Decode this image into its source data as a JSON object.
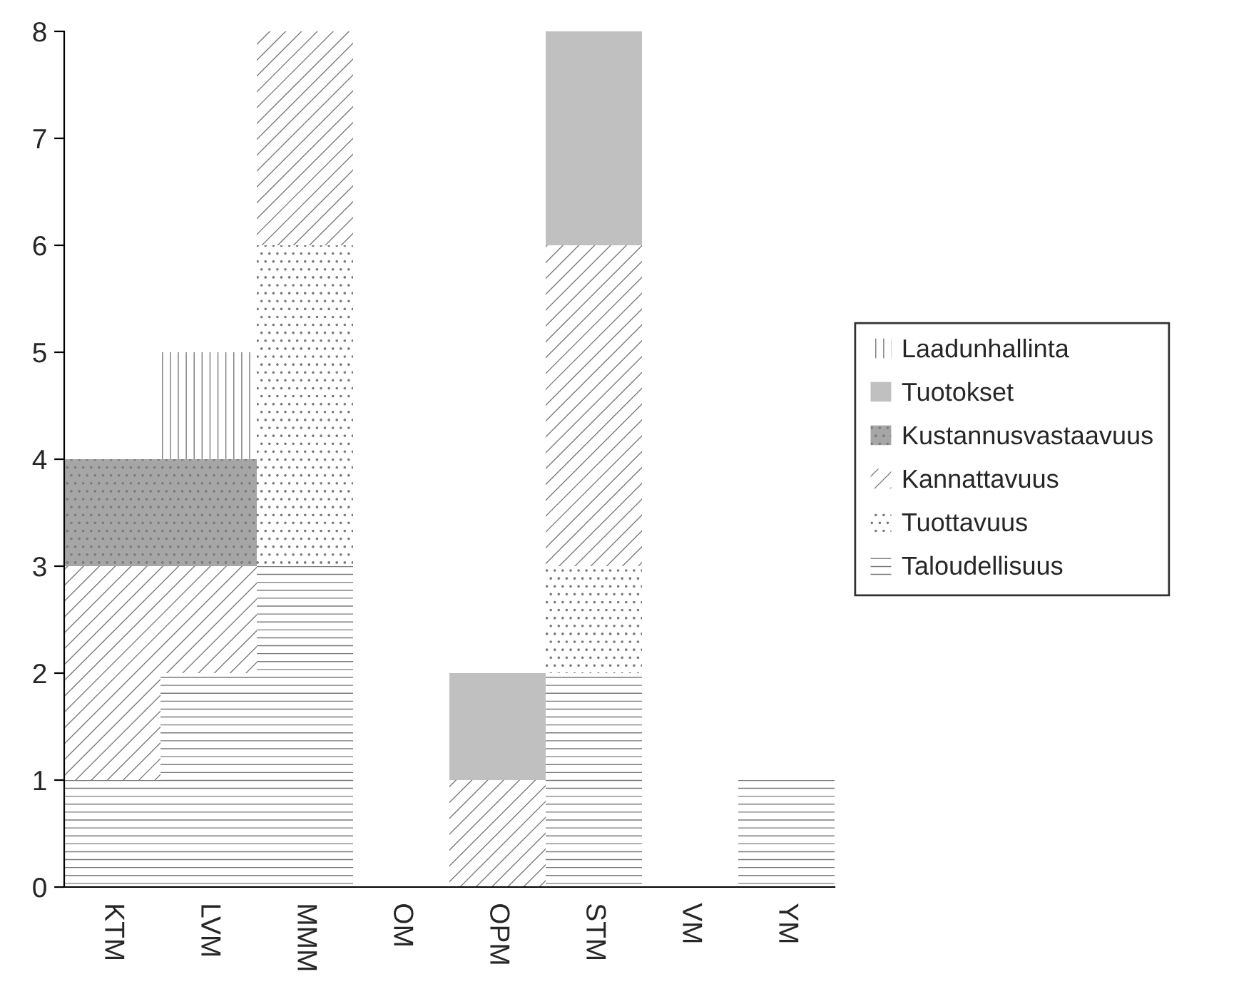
{
  "chart_data": {
    "type": "bar",
    "stacked": true,
    "categories": [
      "KTM",
      "LVM",
      "MMM",
      "OM",
      "OPM",
      "STM",
      "VM",
      "YM"
    ],
    "series": [
      {
        "name": "Taloudellisuus",
        "color": "#ffffff",
        "values": [
          1,
          2,
          3,
          0,
          0,
          2,
          0,
          1
        ]
      },
      {
        "name": "Tuottavuus",
        "color": "#ffffff",
        "values": [
          0,
          0,
          3,
          0,
          0,
          1,
          0,
          0
        ]
      },
      {
        "name": "Kannattavuus",
        "color": "#ffffff",
        "values": [
          2,
          1,
          2,
          0,
          1,
          3,
          0,
          0
        ]
      },
      {
        "name": "Kustannusvastaavuus",
        "color": "#a6a6a6",
        "values": [
          1,
          1,
          0,
          0,
          0,
          0,
          0,
          0
        ]
      },
      {
        "name": "Tuotokset",
        "color": "#c0c0c0",
        "values": [
          0,
          0,
          0,
          0,
          1,
          2,
          0,
          0
        ]
      },
      {
        "name": "Laadunhallinta",
        "color": "#ffffff",
        "values": [
          0,
          1,
          0,
          0,
          0,
          0,
          0,
          0
        ]
      }
    ],
    "ylim": [
      0,
      8
    ],
    "yticks": [
      0,
      1,
      2,
      3,
      4,
      5,
      6,
      7,
      8
    ],
    "grid": false,
    "legend": "right"
  }
}
